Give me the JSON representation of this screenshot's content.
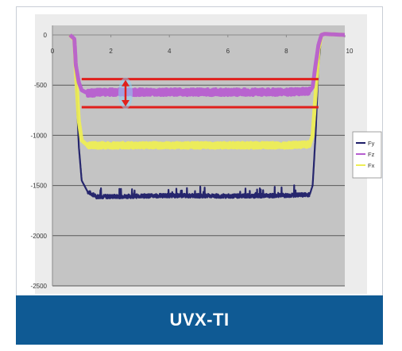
{
  "caption": "UVX-TI",
  "colors": {
    "banner": "#0f5a94",
    "plot_bg": "#c4c4c4",
    "grid": "#585858",
    "fy": "#1d1d68",
    "fz": "#b75ed0",
    "fx": "#eeee55",
    "annotation": "#e0201c",
    "marker_glow": "#8fd0f2"
  },
  "chart_data": {
    "type": "line",
    "title": "",
    "xlabel": "",
    "ylabel": "",
    "xlim": [
      0,
      10
    ],
    "ylim": [
      -2500,
      0
    ],
    "x_ticks": [
      0,
      2,
      4,
      6,
      8,
      10
    ],
    "y_ticks": [
      0,
      -500,
      -1000,
      -1500,
      -2000,
      -2500
    ],
    "grid": "horizontal",
    "legend_position": "right",
    "series": [
      {
        "name": "Fy",
        "color": "#1d1d68",
        "steady": -1600,
        "noise": 20,
        "x": [
          0.6,
          0.75,
          0.8,
          0.9,
          1.0,
          1.2,
          1.5,
          2.0,
          4.0,
          6.0,
          8.0,
          8.8,
          8.9,
          9.0,
          9.1,
          9.2,
          9.3,
          10.0
        ],
        "y": [
          0,
          -50,
          -400,
          -1100,
          -1450,
          -1560,
          -1610,
          -1610,
          -1600,
          -1605,
          -1600,
          -1590,
          -1500,
          -1000,
          -300,
          0,
          10,
          0
        ]
      },
      {
        "name": "Fz",
        "color": "#b75ed0",
        "steady": -570,
        "noise": 28,
        "x": [
          0.6,
          0.75,
          0.8,
          0.9,
          1.0,
          1.2,
          1.5,
          2.0,
          4.0,
          6.0,
          8.0,
          8.8,
          8.9,
          9.0,
          9.1,
          9.2,
          9.3,
          10.0
        ],
        "y": [
          0,
          -40,
          -300,
          -470,
          -550,
          -580,
          -575,
          -570,
          -570,
          -570,
          -570,
          -560,
          -520,
          -300,
          -100,
          0,
          10,
          0
        ]
      },
      {
        "name": "Fx",
        "color": "#eeee55",
        "steady": -1100,
        "noise": 24,
        "x": [
          0.6,
          0.75,
          0.8,
          0.9,
          1.0,
          1.2,
          1.5,
          2.0,
          4.0,
          6.0,
          8.0,
          8.8,
          8.9,
          9.0,
          9.1,
          9.2,
          9.3,
          10.0
        ],
        "y": [
          0,
          -50,
          -350,
          -850,
          -1050,
          -1100,
          -1100,
          -1100,
          -1100,
          -1100,
          -1100,
          -1090,
          -1000,
          -600,
          -150,
          0,
          10,
          0
        ]
      }
    ],
    "annotations": [
      {
        "type": "hline",
        "y": -440,
        "x_from": 1.0,
        "x_to": 9.1
      },
      {
        "type": "hline",
        "y": -720,
        "x_from": 1.0,
        "x_to": 9.1
      },
      {
        "type": "double-arrow",
        "x": 2.5,
        "y_from": -440,
        "y_to": -720
      }
    ]
  }
}
